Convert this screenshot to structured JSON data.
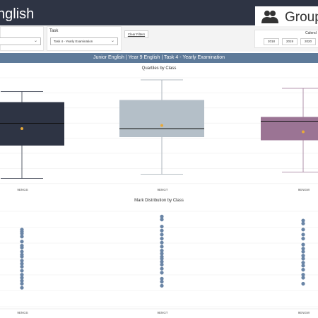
{
  "header": {
    "title": "nglish",
    "group_label": "Group"
  },
  "filters": {
    "task_label": "Task",
    "task_value": "Task 4 - Yearly Examination",
    "clear_label": "Clear Filters",
    "calendar_label": "Calend",
    "years": [
      "2018",
      "2019",
      "2020"
    ]
  },
  "banner": "Junior English | Year 9 English | Task 4 - Yearly Examination",
  "quartiles_title": "Quartiles by Class",
  "distribution_title": "Mark Distribution by Class",
  "classes": [
    "9ENGS",
    "9ENGT",
    "9ENGW"
  ],
  "colors": {
    "header": "#2e3444",
    "banner": "#5e7a99",
    "engs": "#2e3444",
    "engt": "#b4bfc8",
    "engw": "#9b7494",
    "dot": "#6a85a6",
    "mean": "#e8a93a"
  },
  "chart_data": [
    {
      "type": "box",
      "title": "Quartiles by Class",
      "categories": [
        "9ENGS",
        "9ENGT",
        "9ENGW"
      ],
      "boxes": [
        {
          "name": "9ENGS",
          "min": 0.05,
          "q1": 0.36,
          "median": 0.57,
          "q3": 0.77,
          "max": 0.87,
          "mean": 0.52
        },
        {
          "name": "9ENGT",
          "min": 0.09,
          "q1": 0.44,
          "median": 0.52,
          "q3": 0.79,
          "max": 0.98,
          "mean": 0.55
        },
        {
          "name": "9ENGW",
          "min": 0.11,
          "q1": 0.41,
          "median": 0.59,
          "q3": 0.63,
          "max": 0.9,
          "mean": 0.49
        }
      ],
      "grid": true
    },
    {
      "type": "scatter",
      "title": "Mark Distribution by Class",
      "categories": [
        "9ENGS",
        "9ENGT",
        "9ENGW"
      ],
      "series": [
        {
          "name": "9ENGS",
          "values": [
            0.79,
            0.77,
            0.75,
            0.72,
            0.67,
            0.63,
            0.61,
            0.57,
            0.54,
            0.52,
            0.48,
            0.45,
            0.42,
            0.38,
            0.34,
            0.31,
            0.28,
            0.25,
            0.21
          ]
        },
        {
          "name": "9ENGT",
          "values": [
            0.92,
            0.89,
            0.82,
            0.78,
            0.74,
            0.7,
            0.66,
            0.62,
            0.58,
            0.55,
            0.52,
            0.5,
            0.47,
            0.44,
            0.4,
            0.36,
            0.3,
            0.27,
            0.23
          ]
        },
        {
          "name": "9ENGW",
          "values": [
            0.88,
            0.85,
            0.79,
            0.74,
            0.7,
            0.64,
            0.6,
            0.57,
            0.53,
            0.5,
            0.46,
            0.43,
            0.39,
            0.34,
            0.31,
            0.25
          ]
        }
      ],
      "grid": true
    }
  ]
}
